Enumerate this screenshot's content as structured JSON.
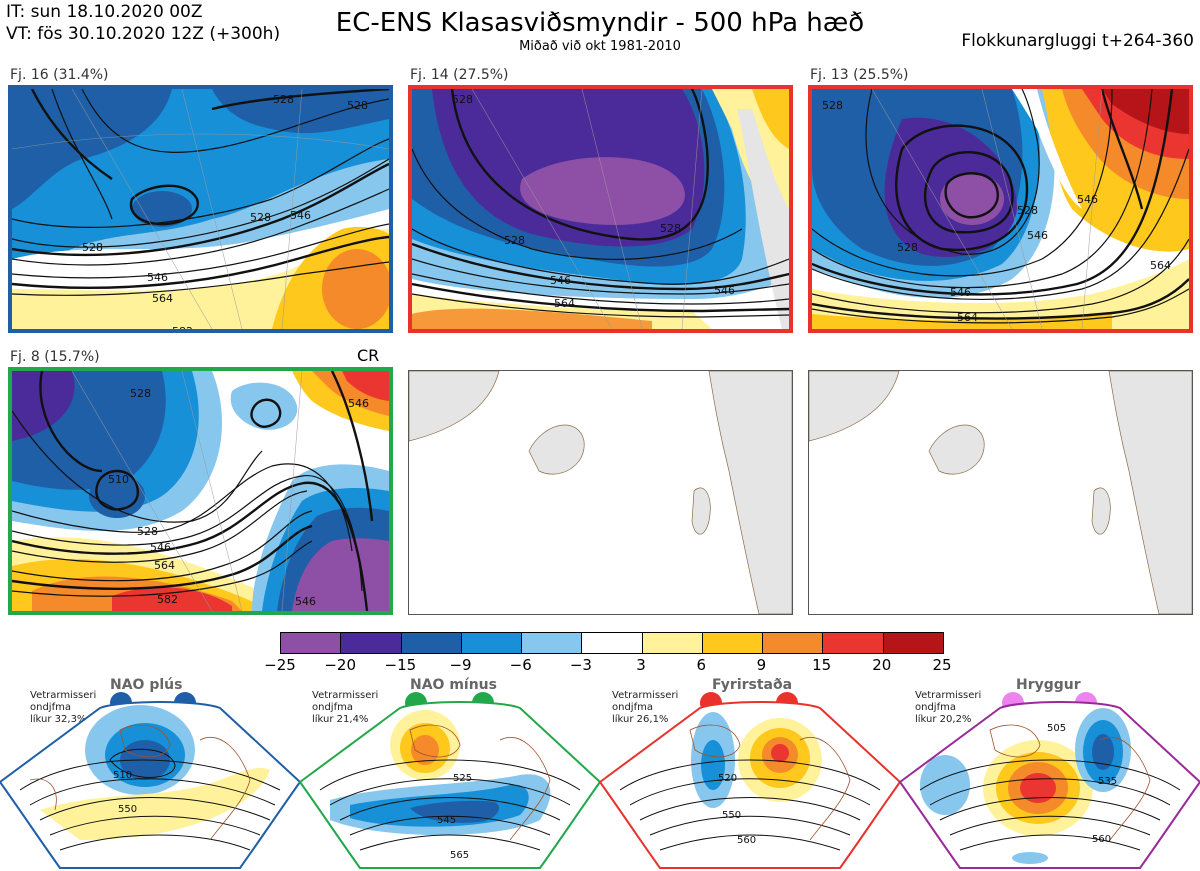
{
  "header": {
    "it": "IT: sun 18.10.2020 00Z",
    "vt": "VT: fös 30.10.2020 12Z  (+300h)",
    "title": "EC-ENS Klasasviðsmyndir - 500 hPa hæð",
    "subtitle": "Miðað við okt 1981-2010",
    "window": "Flokkunargluggi t+264-360"
  },
  "panels": [
    {
      "label": "Fj. 16 (31.4%)",
      "border_color": "#1f5fa8",
      "contours": [
        "528",
        "528",
        "528",
        "528",
        "546",
        "546",
        "564",
        "582"
      ]
    },
    {
      "label": "Fj. 14 (27.5%)",
      "border_color": "#e8322b",
      "contours": [
        "528",
        "528",
        "528",
        "546",
        "546",
        "564"
      ]
    },
    {
      "label": "Fj. 13 (25.5%)",
      "border_color": "#e8322b",
      "contours": [
        "528",
        "528",
        "528",
        "546",
        "546",
        "546",
        "564",
        "564"
      ]
    },
    {
      "label": "Fj. 8 (15.7%)",
      "border_color": "#22a84a",
      "contours": [
        "528",
        "510",
        "528",
        "546",
        "564",
        "582",
        "546",
        "546"
      ],
      "tag": "CR"
    }
  ],
  "colorbar": {
    "colors": [
      "#8e4fa6",
      "#4b2a9a",
      "#1f5fa8",
      "#1790d8",
      "#87c7ee",
      "#ffffff",
      "#fff29a",
      "#ffc81c",
      "#f58a2a",
      "#ea3530",
      "#b51519"
    ],
    "labels": [
      "−25",
      "−20",
      "−15",
      "−9",
      "−6",
      "−3",
      "3",
      "6",
      "9",
      "15",
      "20",
      "25"
    ]
  },
  "regimes": [
    {
      "title": "NAO plús",
      "note_line1": "Vetrarmisseri",
      "note_line2": "ondjfma",
      "note_line3": "líkur 32,3%",
      "color": "#1f5fa8",
      "contours": [
        "510",
        "550"
      ]
    },
    {
      "title": "NAO mínus",
      "note_line1": "Vetrarmisseri",
      "note_line2": "ondjfma",
      "note_line3": "líkur 21,4%",
      "color": "#22a84a",
      "contours": [
        "525",
        "545",
        "565"
      ]
    },
    {
      "title": "Fyrirstaða",
      "note_line1": "Vetrarmisseri",
      "note_line2": "ondjfma",
      "note_line3": "líkur 26,1%",
      "color": "#e8322b",
      "contours": [
        "520",
        "550",
        "560"
      ]
    },
    {
      "title": "Hryggur",
      "note_line1": "Vetrarmisseri",
      "note_line2": "ondjfma",
      "note_line3": "líkur 20,2%",
      "color": "#9a2a9a",
      "contours": [
        "505",
        "535",
        "560"
      ]
    }
  ]
}
